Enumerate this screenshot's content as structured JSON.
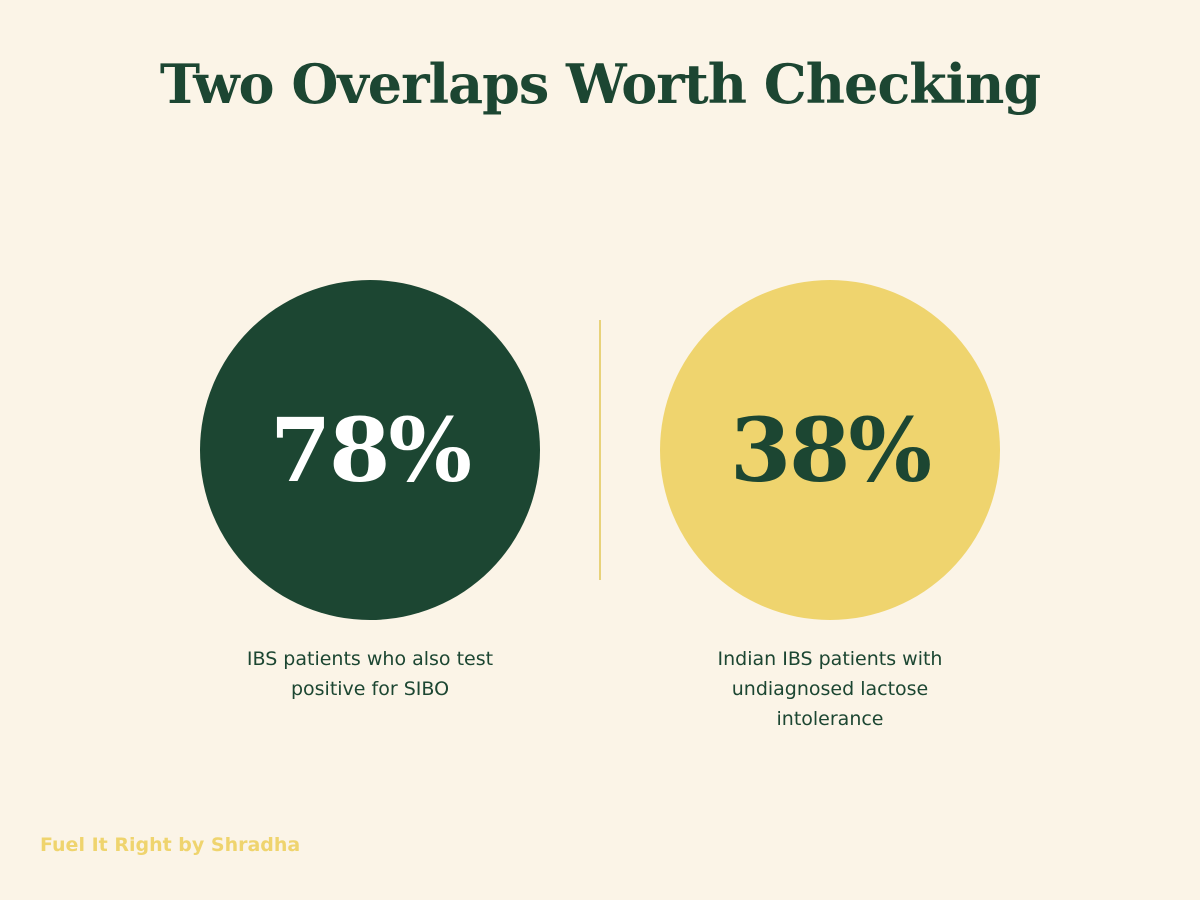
{
  "title": "Two Overlaps Worth Checking",
  "stats": [
    {
      "value": "78%",
      "label": "IBS patients who also test positive for SIBO"
    },
    {
      "value": "38%",
      "label": "Indian IBS patients with undiagnosed lactose intolerance"
    }
  ],
  "footer": "Fuel It Right by Shradha"
}
